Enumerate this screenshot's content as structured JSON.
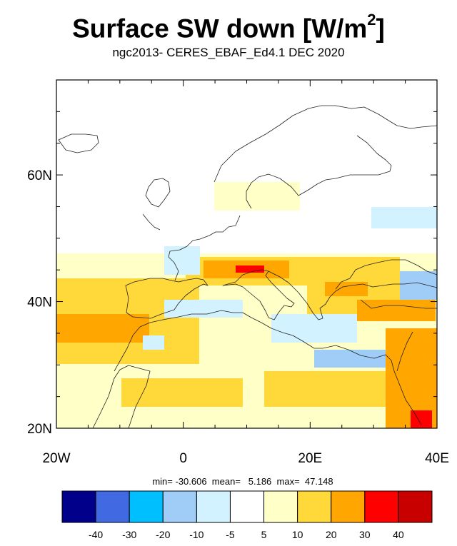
{
  "title": {
    "main": "Surface SW down [W/m",
    "sup": "2",
    "close": "]"
  },
  "subtitle": "ngc2013- CERES_EBAF_Ed4.1  DEC 2020",
  "stats": "min= -30.606  mean=   5.186  max=  47.148",
  "map": {
    "lon_range": [
      -20,
      40
    ],
    "lat_range": [
      20,
      75
    ],
    "lon_ticks": [
      {
        "value": -20,
        "label": "20W"
      },
      {
        "value": 0,
        "label": "0"
      },
      {
        "value": 20,
        "label": "20E"
      },
      {
        "value": 40,
        "label": "40E"
      }
    ],
    "lat_ticks": [
      {
        "value": 20,
        "label": "20N"
      },
      {
        "value": 40,
        "label": "40N"
      },
      {
        "value": 60,
        "label": "60N"
      }
    ]
  },
  "colorbar": {
    "colors": [
      "#00008b",
      "#4169e1",
      "#00bfff",
      "#9fcdf7",
      "#d2f2ff",
      "#ffffff",
      "#ffffc8",
      "#ffd83a",
      "#ffa600",
      "#ff0000",
      "#c80000"
    ],
    "labels": [
      "-40",
      "-30",
      "-20",
      "-10",
      "-5",
      "5",
      "10",
      "20",
      "30",
      "40"
    ]
  }
}
